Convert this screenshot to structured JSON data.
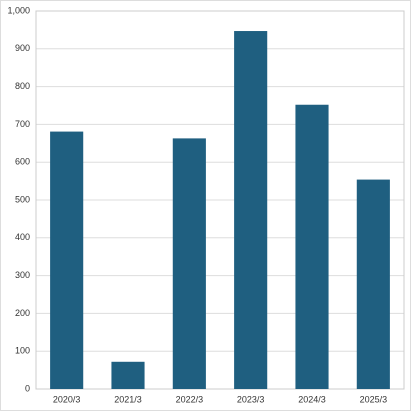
{
  "chart_data": {
    "type": "bar",
    "categories": [
      "2020/3",
      "2021/3",
      "2022/3",
      "2023/3",
      "2024/3",
      "2025/3"
    ],
    "values": [
      681,
      72,
      663,
      947,
      752,
      554
    ],
    "color": "#1f5f80",
    "ylim": [
      0,
      1000
    ],
    "yticks": [
      0,
      100,
      200,
      300,
      400,
      500,
      600,
      700,
      800,
      900,
      {
        "value": 1000,
        "label": "1,000"
      }
    ],
    "grid": true
  }
}
